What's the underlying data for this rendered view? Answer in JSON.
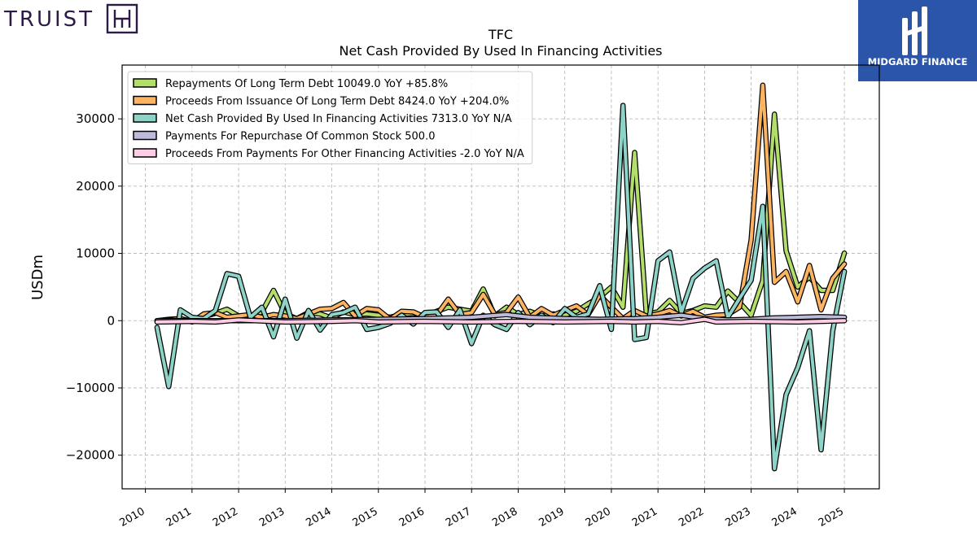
{
  "brand_left": {
    "name": "TRUIST",
    "color": "#2e1a47"
  },
  "brand_right": {
    "name": "MIDGARD FINANCE",
    "bg_color": "#2a55a8"
  },
  "chart_data": {
    "type": "line",
    "title": "TFC",
    "subtitle": "Net Cash Provided By Used In Financing Activities",
    "xlabel": "",
    "ylabel": "USDm",
    "xlim": [
      2009.5,
      2025.75
    ],
    "ylim": [
      -25000,
      38000
    ],
    "yticks": [
      -20000,
      -10000,
      0,
      10000,
      20000,
      30000
    ],
    "ytick_labels": [
      "−20000",
      "−10000",
      "0",
      "10000",
      "20000",
      "30000"
    ],
    "xticks": [
      2010,
      2011,
      2012,
      2013,
      2014,
      2015,
      2016,
      2017,
      2018,
      2019,
      2020,
      2021,
      2022,
      2023,
      2024,
      2025
    ],
    "xtick_labels": [
      "2010",
      "2011",
      "2012",
      "2013",
      "2014",
      "2015",
      "2016",
      "2017",
      "2018",
      "2019",
      "2020",
      "2021",
      "2022",
      "2023",
      "2024",
      "2025"
    ],
    "grid": true,
    "legend_position": "top-left",
    "series": [
      {
        "name": "Repayments Of Long Term Debt",
        "legend_label": "Repayments Of Long Term Debt  10049.0 YoY +85.8%",
        "color": "#b3de69",
        "points": [
          [
            2010.25,
            0
          ],
          [
            2010.5,
            200
          ],
          [
            2010.75,
            300
          ],
          [
            2011.0,
            -100
          ],
          [
            2011.25,
            600
          ],
          [
            2011.5,
            1100
          ],
          [
            2011.75,
            1700
          ],
          [
            2012.0,
            700
          ],
          [
            2012.25,
            500
          ],
          [
            2012.5,
            1300
          ],
          [
            2012.75,
            4500
          ],
          [
            2013.0,
            1000
          ],
          [
            2013.25,
            300
          ],
          [
            2013.5,
            1200
          ],
          [
            2013.75,
            1000
          ],
          [
            2014.0,
            400
          ],
          [
            2014.25,
            1300
          ],
          [
            2014.5,
            900
          ],
          [
            2014.75,
            1000
          ],
          [
            2015.0,
            800
          ],
          [
            2015.25,
            500
          ],
          [
            2015.5,
            900
          ],
          [
            2015.75,
            1100
          ],
          [
            2016.0,
            700
          ],
          [
            2016.25,
            1400
          ],
          [
            2016.5,
            2000
          ],
          [
            2016.75,
            1700
          ],
          [
            2017.0,
            1400
          ],
          [
            2017.25,
            4700
          ],
          [
            2017.5,
            700
          ],
          [
            2017.75,
            2000
          ],
          [
            2018.0,
            900
          ],
          [
            2018.25,
            1400
          ],
          [
            2018.5,
            700
          ],
          [
            2018.75,
            1000
          ],
          [
            2019.0,
            800
          ],
          [
            2019.25,
            1400
          ],
          [
            2019.5,
            2500
          ],
          [
            2019.75,
            3500
          ],
          [
            2020.0,
            5000
          ],
          [
            2020.25,
            2000
          ],
          [
            2020.5,
            25000
          ],
          [
            2020.75,
            1000
          ],
          [
            2021.0,
            1300
          ],
          [
            2021.25,
            3000
          ],
          [
            2021.5,
            1100
          ],
          [
            2021.75,
            1500
          ],
          [
            2022.0,
            2200
          ],
          [
            2022.25,
            2000
          ],
          [
            2022.5,
            4400
          ],
          [
            2022.75,
            2700
          ],
          [
            2023.0,
            800
          ],
          [
            2023.25,
            6000
          ],
          [
            2023.5,
            30700
          ],
          [
            2023.75,
            10400
          ],
          [
            2024.0,
            5000
          ],
          [
            2024.25,
            6500
          ],
          [
            2024.5,
            4500
          ],
          [
            2024.75,
            4500
          ],
          [
            2025.0,
            10049
          ]
        ]
      },
      {
        "name": "Proceeds From Issuance Of Long Term Debt",
        "legend_label": "Proceeds From Issuance Of Long Term Debt  8424.0 YoY +204.0%",
        "color": "#fdb462",
        "points": [
          [
            2010.25,
            0
          ],
          [
            2010.5,
            100
          ],
          [
            2010.75,
            300
          ],
          [
            2011.0,
            -200
          ],
          [
            2011.25,
            1000
          ],
          [
            2011.5,
            1200
          ],
          [
            2011.75,
            500
          ],
          [
            2012.0,
            700
          ],
          [
            2012.25,
            900
          ],
          [
            2012.5,
            500
          ],
          [
            2012.75,
            900
          ],
          [
            2013.0,
            700
          ],
          [
            2013.25,
            300
          ],
          [
            2013.5,
            1000
          ],
          [
            2013.75,
            1700
          ],
          [
            2014.0,
            1800
          ],
          [
            2014.25,
            2700
          ],
          [
            2014.5,
            700
          ],
          [
            2014.75,
            1800
          ],
          [
            2015.0,
            1600
          ],
          [
            2015.25,
            200
          ],
          [
            2015.5,
            1400
          ],
          [
            2015.75,
            1300
          ],
          [
            2016.0,
            500
          ],
          [
            2016.25,
            800
          ],
          [
            2016.5,
            3200
          ],
          [
            2016.75,
            900
          ],
          [
            2017.0,
            1200
          ],
          [
            2017.25,
            3900
          ],
          [
            2017.5,
            900
          ],
          [
            2017.75,
            1200
          ],
          [
            2018.0,
            3500
          ],
          [
            2018.25,
            500
          ],
          [
            2018.5,
            1800
          ],
          [
            2018.75,
            800
          ],
          [
            2019.0,
            1500
          ],
          [
            2019.25,
            2200
          ],
          [
            2019.5,
            900
          ],
          [
            2019.75,
            3800
          ],
          [
            2020.0,
            2000
          ],
          [
            2020.25,
            300
          ],
          [
            2020.5,
            1500
          ],
          [
            2020.75,
            700
          ],
          [
            2021.0,
            1000
          ],
          [
            2021.25,
            1500
          ],
          [
            2021.5,
            700
          ],
          [
            2021.75,
            1400
          ],
          [
            2022.0,
            500
          ],
          [
            2022.25,
            800
          ],
          [
            2022.5,
            900
          ],
          [
            2022.75,
            2000
          ],
          [
            2023.0,
            12000
          ],
          [
            2023.25,
            35000
          ],
          [
            2023.5,
            5700
          ],
          [
            2023.75,
            7300
          ],
          [
            2024.0,
            2800
          ],
          [
            2024.25,
            8200
          ],
          [
            2024.5,
            1600
          ],
          [
            2024.75,
            6300
          ],
          [
            2025.0,
            8424
          ]
        ]
      },
      {
        "name": "Net Cash Provided By Used In Financing Activities",
        "legend_label": "Net Cash Provided By Used In Financing Activities  7313.0 YoY N/A",
        "color": "#8dd3c7",
        "points": [
          [
            2010.25,
            -1000
          ],
          [
            2010.5,
            -9800
          ],
          [
            2010.75,
            1600
          ],
          [
            2011.0,
            500
          ],
          [
            2011.25,
            300
          ],
          [
            2011.5,
            1500
          ],
          [
            2011.75,
            7000
          ],
          [
            2012.0,
            6600
          ],
          [
            2012.25,
            500
          ],
          [
            2012.5,
            2000
          ],
          [
            2012.75,
            -2400
          ],
          [
            2013.0,
            3200
          ],
          [
            2013.25,
            -2600
          ],
          [
            2013.5,
            1500
          ],
          [
            2013.75,
            -1400
          ],
          [
            2014.0,
            900
          ],
          [
            2014.25,
            1200
          ],
          [
            2014.5,
            2000
          ],
          [
            2014.75,
            -1300
          ],
          [
            2015.0,
            -1000
          ],
          [
            2015.25,
            -400
          ],
          [
            2015.5,
            800
          ],
          [
            2015.75,
            -500
          ],
          [
            2016.0,
            1200
          ],
          [
            2016.25,
            1300
          ],
          [
            2016.5,
            -1000
          ],
          [
            2016.75,
            1600
          ],
          [
            2017.0,
            -3400
          ],
          [
            2017.25,
            800
          ],
          [
            2017.5,
            -600
          ],
          [
            2017.75,
            -1300
          ],
          [
            2018.0,
            1200
          ],
          [
            2018.25,
            -600
          ],
          [
            2018.5,
            800
          ],
          [
            2018.75,
            -300
          ],
          [
            2019.0,
            1800
          ],
          [
            2019.25,
            500
          ],
          [
            2019.5,
            1000
          ],
          [
            2019.75,
            5200
          ],
          [
            2020.0,
            -1300
          ],
          [
            2020.25,
            32000
          ],
          [
            2020.5,
            -2800
          ],
          [
            2020.75,
            -2500
          ],
          [
            2021.0,
            8900
          ],
          [
            2021.25,
            10200
          ],
          [
            2021.5,
            1200
          ],
          [
            2021.75,
            6300
          ],
          [
            2022.0,
            7800
          ],
          [
            2022.25,
            8900
          ],
          [
            2022.5,
            500
          ],
          [
            2022.75,
            3300
          ],
          [
            2023.0,
            6000
          ],
          [
            2023.25,
            17000
          ],
          [
            2023.5,
            -22000
          ],
          [
            2023.75,
            -11000
          ],
          [
            2024.0,
            -7000
          ],
          [
            2024.25,
            -1500
          ],
          [
            2024.5,
            -19200
          ],
          [
            2024.75,
            -1500
          ],
          [
            2025.0,
            7313
          ]
        ]
      },
      {
        "name": "Payments For Repurchase Of Common Stock",
        "legend_label": "Payments For Repurchase Of Common Stock  500.0",
        "color": "#bebada",
        "points": [
          [
            2010.25,
            0
          ],
          [
            2011.0,
            0
          ],
          [
            2012.0,
            0
          ],
          [
            2013.0,
            0
          ],
          [
            2014.0,
            100
          ],
          [
            2015.0,
            200
          ],
          [
            2016.0,
            300
          ],
          [
            2017.0,
            500
          ],
          [
            2017.75,
            900
          ],
          [
            2018.25,
            500
          ],
          [
            2019.0,
            300
          ],
          [
            2019.75,
            200
          ],
          [
            2020.5,
            300
          ],
          [
            2021.0,
            500
          ],
          [
            2021.5,
            800
          ],
          [
            2022.0,
            300
          ],
          [
            2022.5,
            100
          ],
          [
            2023.0,
            200
          ],
          [
            2023.5,
            400
          ],
          [
            2024.0,
            500
          ],
          [
            2024.5,
            600
          ],
          [
            2025.0,
            500
          ]
        ]
      },
      {
        "name": "Proceeds From Payments For Other Financing Activities",
        "legend_label": "Proceeds From Payments For Other Financing Activities  -2.0 YoY N/A",
        "color": "#fccde5",
        "points": [
          [
            2010.25,
            -200
          ],
          [
            2011.0,
            -100
          ],
          [
            2011.5,
            -200
          ],
          [
            2012.0,
            100
          ],
          [
            2013.0,
            -200
          ],
          [
            2014.0,
            -100
          ],
          [
            2014.5,
            0
          ],
          [
            2015.0,
            -200
          ],
          [
            2016.0,
            -100
          ],
          [
            2017.0,
            -200
          ],
          [
            2018.0,
            -100
          ],
          [
            2019.0,
            -200
          ],
          [
            2020.0,
            -100
          ],
          [
            2020.5,
            -200
          ],
          [
            2021.0,
            -100
          ],
          [
            2021.5,
            -300
          ],
          [
            2022.0,
            200
          ],
          [
            2022.25,
            -200
          ],
          [
            2023.0,
            -100
          ],
          [
            2024.0,
            -200
          ],
          [
            2025.0,
            -2
          ]
        ]
      }
    ]
  }
}
